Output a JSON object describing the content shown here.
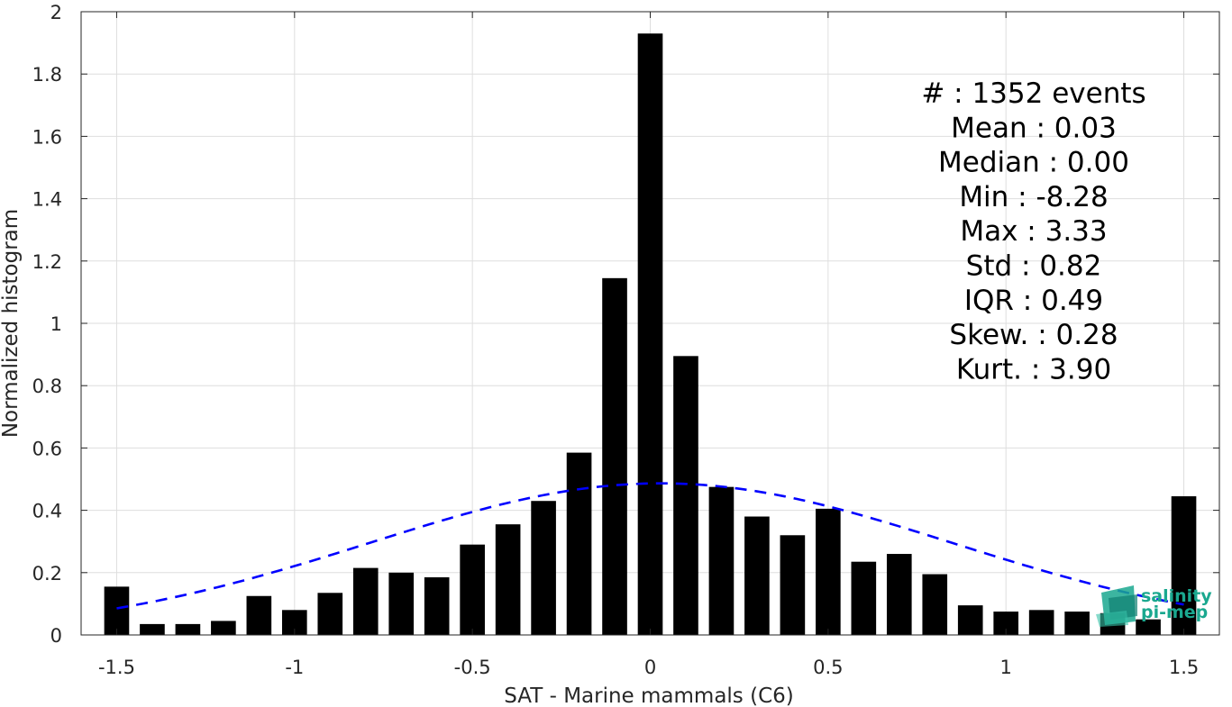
{
  "chart_data": {
    "type": "bar",
    "xlabel": "SAT - Marine mammals (C6)",
    "ylabel": "Normalized histogram",
    "xlim": [
      -1.6,
      1.6
    ],
    "ylim": [
      0,
      2
    ],
    "grid": true,
    "x_ticks": [
      {
        "value": -1.5,
        "label": "-1.5"
      },
      {
        "value": -1,
        "label": "-1"
      },
      {
        "value": -0.5,
        "label": "-0.5"
      },
      {
        "value": 0,
        "label": "0"
      },
      {
        "value": 0.5,
        "label": "0.5"
      },
      {
        "value": 1,
        "label": "1"
      },
      {
        "value": 1.5,
        "label": "1.5"
      }
    ],
    "y_ticks": [
      {
        "value": 0,
        "label": "0"
      },
      {
        "value": 0.2,
        "label": "0.2"
      },
      {
        "value": 0.4,
        "label": "0.4"
      },
      {
        "value": 0.6,
        "label": "0.6"
      },
      {
        "value": 0.8,
        "label": "0.8"
      },
      {
        "value": 1,
        "label": "1"
      },
      {
        "value": 1.2,
        "label": "1.2"
      },
      {
        "value": 1.4,
        "label": "1.4"
      },
      {
        "value": 1.6,
        "label": "1.6"
      },
      {
        "value": 1.8,
        "label": "1.8"
      },
      {
        "value": 2,
        "label": "2"
      }
    ],
    "bar_color": "#000000",
    "bar_width": 0.07,
    "bars": {
      "x": [
        -1.5,
        -1.4,
        -1.3,
        -1.2,
        -1.1,
        -1.0,
        -0.9,
        -0.8,
        -0.7,
        -0.6,
        -0.5,
        -0.4,
        -0.3,
        -0.2,
        -0.1,
        0.0,
        0.1,
        0.2,
        0.3,
        0.4,
        0.5,
        0.6,
        0.7,
        0.8,
        0.9,
        1.0,
        1.1,
        1.2,
        1.3,
        1.4,
        1.5
      ],
      "values": [
        0.155,
        0.035,
        0.035,
        0.045,
        0.125,
        0.08,
        0.135,
        0.215,
        0.2,
        0.185,
        0.29,
        0.355,
        0.43,
        0.585,
        1.145,
        1.93,
        0.895,
        0.475,
        0.38,
        0.32,
        0.405,
        0.235,
        0.26,
        0.195,
        0.095,
        0.075,
        0.08,
        0.075,
        0.07,
        0.05,
        0.445
      ]
    },
    "fit_curve": {
      "style": "dashed",
      "color": "#0000ff",
      "mean": 0.03,
      "std": 0.82,
      "x_range": [
        -1.5,
        1.5
      ]
    },
    "stats": [
      "#  : 1352 events",
      "Mean : 0.03",
      "Median : 0.00",
      "Min : -8.28",
      "Max : 3.33",
      "Std : 0.82",
      "IQR : 0.49",
      "Skew. : 0.28",
      "Kurt. : 3.90"
    ]
  },
  "logo": {
    "line1": "salinity",
    "line2": "pi-mep",
    "color": "#1aa88f"
  }
}
